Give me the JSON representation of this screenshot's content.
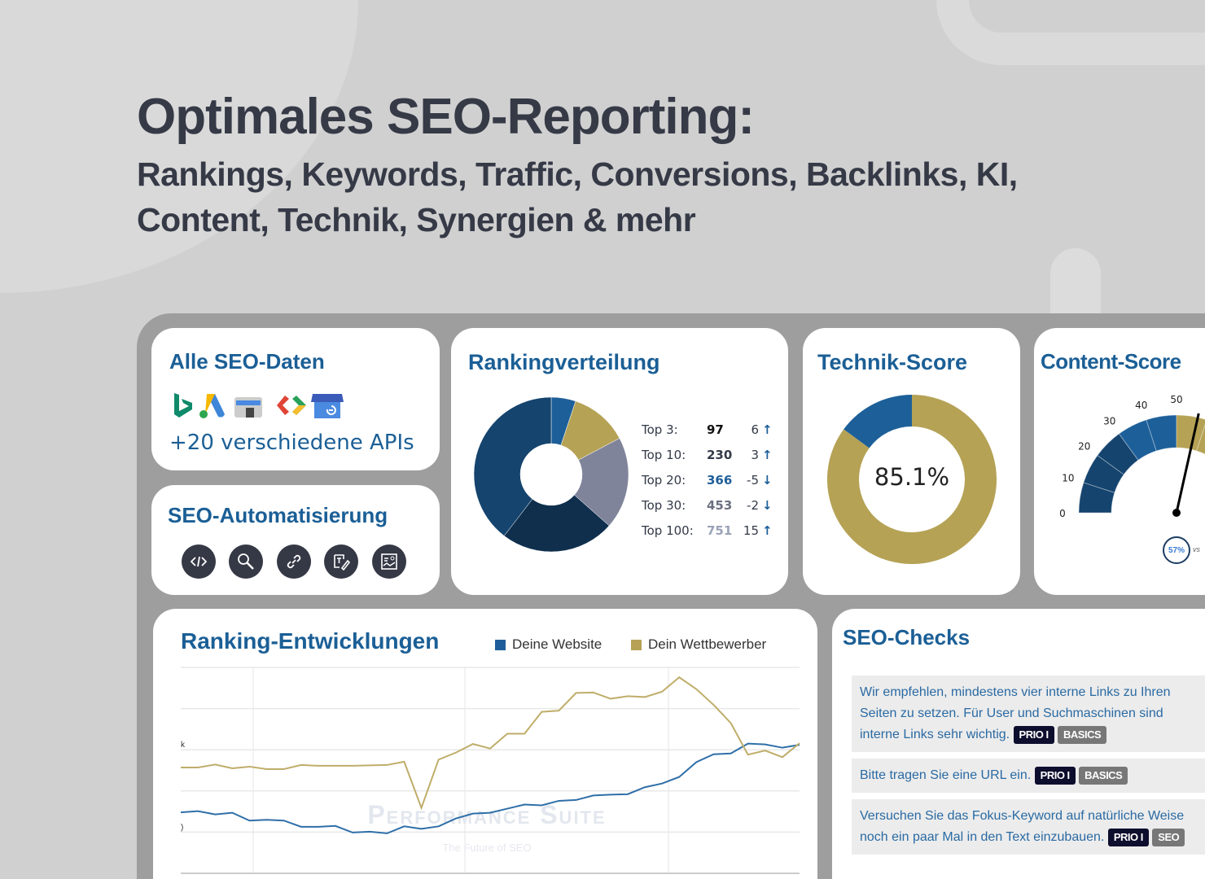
{
  "headline": {
    "title": "Optimales SEO-Reporting:",
    "subtitle_line1": "Rankings, Keywords, Traffic,  Conversions, Backlinks, KI,",
    "subtitle_line2": "Content, Technik, Synergien & mehr"
  },
  "colors": {
    "brand_blue": "#1b5f96",
    "gold": "#b5a255",
    "navy": "#15446e",
    "dark_navy": "#0f2f4d",
    "gray_blue": "#7f849a",
    "light_blue": "#1d5f99"
  },
  "data_sources": {
    "title": "Alle SEO-Daten",
    "icons": [
      "bing-icon",
      "google-ads-icon",
      "search-console-icon",
      "tag-manager-icon",
      "google-business-icon"
    ],
    "caption": "+20 verschiedene APIs"
  },
  "automation": {
    "title": "SEO-Automatisierung",
    "icons": [
      "code-icon",
      "search-analysis-icon",
      "link-icon",
      "text-edit-icon",
      "image-report-icon"
    ]
  },
  "ranking_distribution": {
    "title": "Rankingverteilung",
    "rows": [
      {
        "label": "Top 3:",
        "value": "97",
        "delta": "6",
        "dir": "up"
      },
      {
        "label": "Top 10:",
        "value": "230",
        "delta": "3",
        "dir": "up"
      },
      {
        "label": "Top 20:",
        "value": "366",
        "delta": "-5",
        "dir": "down"
      },
      {
        "label": "Top 30:",
        "value": "453",
        "delta": "-2",
        "dir": "down"
      },
      {
        "label": "Top 100:",
        "value": "751",
        "delta": "15",
        "dir": "up"
      }
    ]
  },
  "technik": {
    "title": "Technik-Score",
    "value": "85.1%",
    "fraction": 0.851
  },
  "content": {
    "title": "Content-Score",
    "ticks": [
      "0",
      "10",
      "20",
      "30",
      "40",
      "50"
    ],
    "badge": "57%",
    "badge_suffix": "vs",
    "needle_value": 57
  },
  "chart_data": {
    "type": "line",
    "title": "Ranking-Entwicklungen",
    "ylim": [
      0,
      5
    ],
    "y_tick_labels": [
      "k",
      ")"
    ],
    "series": [
      {
        "name": "Deine Website",
        "color": "#2f6fa8",
        "values": [
          1.48,
          1.51,
          1.43,
          1.47,
          1.28,
          1.3,
          1.28,
          1.13,
          1.13,
          1.15,
          0.99,
          1.01,
          0.97,
          1.14,
          1.08,
          1.14,
          1.33,
          1.45,
          1.47,
          1.57,
          1.67,
          1.65,
          1.76,
          1.78,
          1.89,
          1.91,
          1.92,
          2.09,
          2.18,
          2.34,
          2.7,
          2.89,
          2.91,
          3.15,
          3.13,
          3.05,
          3.12
        ]
      },
      {
        "name": "Dein Wettbewerber",
        "color": "#bfad6a",
        "values": [
          2.57,
          2.57,
          2.64,
          2.55,
          2.59,
          2.53,
          2.53,
          2.63,
          2.61,
          2.61,
          2.61,
          2.62,
          2.63,
          2.71,
          1.59,
          2.76,
          2.93,
          3.14,
          3.03,
          3.39,
          3.39,
          3.92,
          3.95,
          4.38,
          4.39,
          4.24,
          4.3,
          4.28,
          4.41,
          4.76,
          4.47,
          4.09,
          3.65,
          2.88,
          2.98,
          2.82,
          3.16
        ]
      }
    ],
    "watermark": "Performance Suite",
    "watermark_sub": "The Future of SEO"
  },
  "seo_checks": {
    "title": "SEO-Checks",
    "items": [
      {
        "text": "Wir empfehlen, mindestens vier interne Links zu Ihren Seiten zu setzen. Für User und Suchmaschinen sind interne Links sehr wichtig.",
        "tags": [
          "PRIO I",
          "BASICS"
        ]
      },
      {
        "text": "Bitte tragen Sie eine URL ein.",
        "tags": [
          "PRIO I",
          "BASICS"
        ]
      },
      {
        "text": "Versuchen Sie das Fokus-Keyword auf natürliche Weise noch ein paar Mal in den Text einzubauen.",
        "tags": [
          "PRIO I",
          "SEO"
        ]
      }
    ]
  }
}
